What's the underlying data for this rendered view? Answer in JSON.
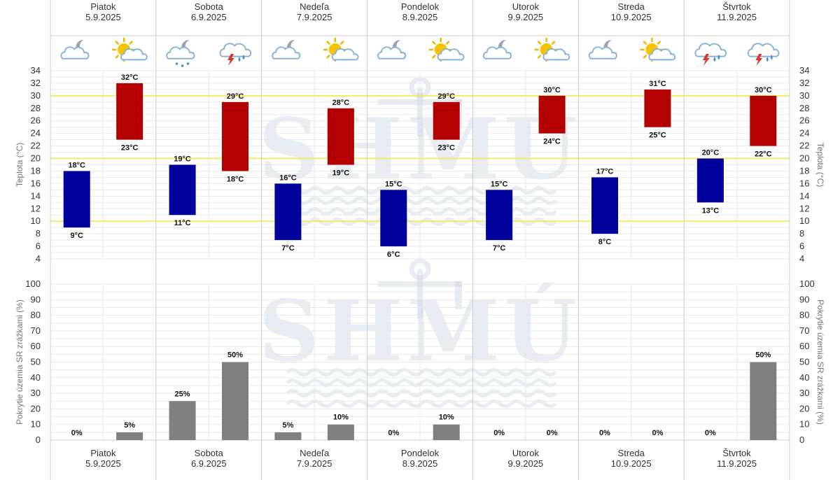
{
  "watermark": "SHMÚ",
  "days": [
    {
      "name": "Piatok",
      "date": "5.9.2025",
      "icons": [
        "cloud-moon-icon",
        "sun-cloud-icon"
      ]
    },
    {
      "name": "Sobota",
      "date": "6.9.2025",
      "icons": [
        "cloud-moon-rain-icon",
        "cloud-storm-icon"
      ]
    },
    {
      "name": "Nedeľa",
      "date": "7.9.2025",
      "icons": [
        "cloud-moon-icon",
        "sun-cloud-icon"
      ]
    },
    {
      "name": "Pondelok",
      "date": "8.9.2025",
      "icons": [
        "cloud-moon-icon",
        "sun-cloud-icon"
      ]
    },
    {
      "name": "Utorok",
      "date": "9.9.2025",
      "icons": [
        "cloud-moon-icon",
        "sun-cloud-icon"
      ]
    },
    {
      "name": "Streda",
      "date": "10.9.2025",
      "icons": [
        "cloud-moon-icon",
        "sun-cloud-icon"
      ]
    },
    {
      "name": "Štvrtok",
      "date": "11.9.2025",
      "icons": [
        "cloud-storm-icon",
        "cloud-storm-icon"
      ]
    }
  ],
  "chart_data": [
    {
      "type": "bar",
      "ylabel": "Teplota (°C)",
      "ylabel_right": "Teplota (°C)",
      "unit": "°C",
      "ylim": [
        4,
        34
      ],
      "yticks": [
        4,
        6,
        8,
        10,
        12,
        14,
        16,
        18,
        20,
        22,
        24,
        26,
        28,
        30,
        32,
        34
      ],
      "reference_lines": [
        10,
        20,
        30
      ],
      "grid": true,
      "series": [
        {
          "color": "#00009c",
          "ranges": [
            [
              9,
              18
            ],
            [
              11,
              19
            ],
            [
              7,
              16
            ],
            [
              6,
              15
            ],
            [
              7,
              15
            ],
            [
              8,
              17
            ],
            [
              13,
              20
            ]
          ]
        },
        {
          "color": "#b30000",
          "ranges": [
            [
              23,
              32
            ],
            [
              18,
              29
            ],
            [
              19,
              28
            ],
            [
              23,
              29
            ],
            [
              24,
              30
            ],
            [
              25,
              31
            ],
            [
              22,
              30
            ]
          ]
        }
      ]
    },
    {
      "type": "bar",
      "ylabel": "Pokrytie územia SR zrážkami (%)",
      "ylabel_right": "Pokrytie územia SR zrážkami (%)",
      "unit": "%",
      "ylim": [
        0,
        100
      ],
      "yticks": [
        0,
        10,
        20,
        30,
        40,
        50,
        60,
        70,
        80,
        90,
        100
      ],
      "grid": true,
      "series": [
        {
          "color": "#808080",
          "values": [
            0,
            25,
            5,
            0,
            0,
            0,
            0
          ]
        },
        {
          "color": "#808080",
          "values": [
            5,
            50,
            10,
            10,
            0,
            0,
            50
          ]
        }
      ]
    }
  ]
}
